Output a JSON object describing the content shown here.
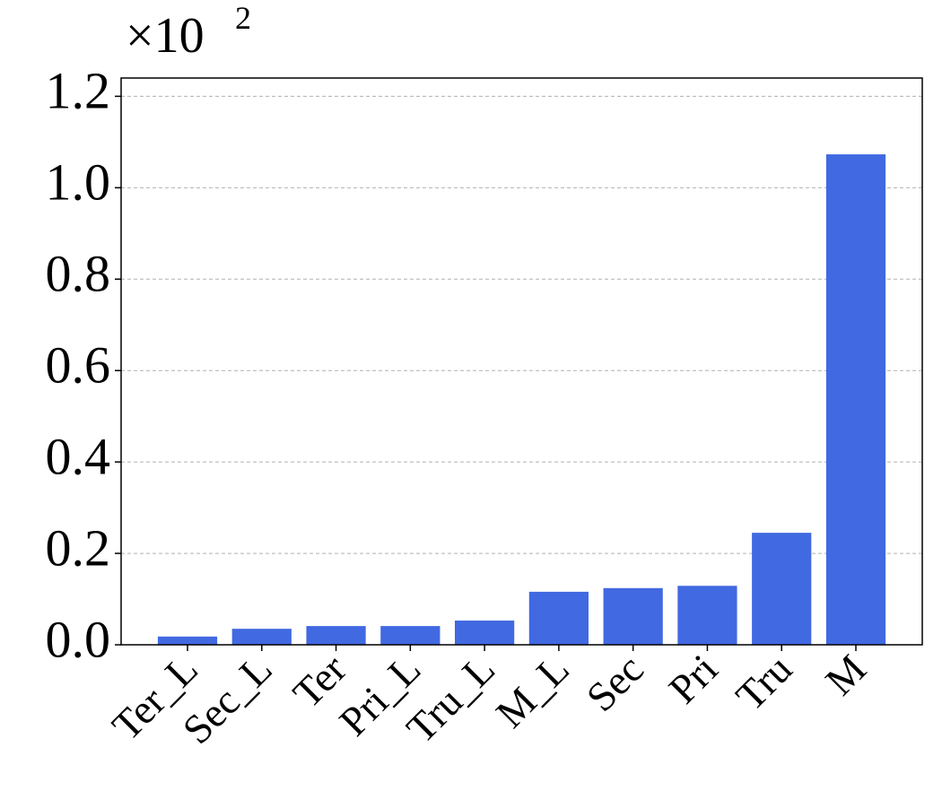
{
  "chart_data": {
    "type": "bar",
    "offset_text": "×10",
    "offset_exponent": "2",
    "categories": [
      "Ter_L",
      "Sec_L",
      "Ter",
      "Pri_L",
      "Tru_L",
      "M_L",
      "Sec",
      "Pri",
      "Tru",
      "M"
    ],
    "values": [
      0.018,
      0.035,
      0.041,
      0.041,
      0.053,
      0.116,
      0.124,
      0.129,
      0.245,
      1.073
    ],
    "color": "#4169e1",
    "ylim": [
      0,
      1.24
    ],
    "yticks": [
      {
        "value": 0,
        "label": "0.0"
      },
      {
        "value": 0.2,
        "label": "0.2"
      },
      {
        "value": 0.4,
        "label": "0.4"
      },
      {
        "value": 0.6,
        "label": "0.6"
      },
      {
        "value": 0.8,
        "label": "0.8"
      },
      {
        "value": 1,
        "label": "1.0"
      },
      {
        "value": 1.2,
        "label": "1.2"
      }
    ],
    "grid": true
  }
}
